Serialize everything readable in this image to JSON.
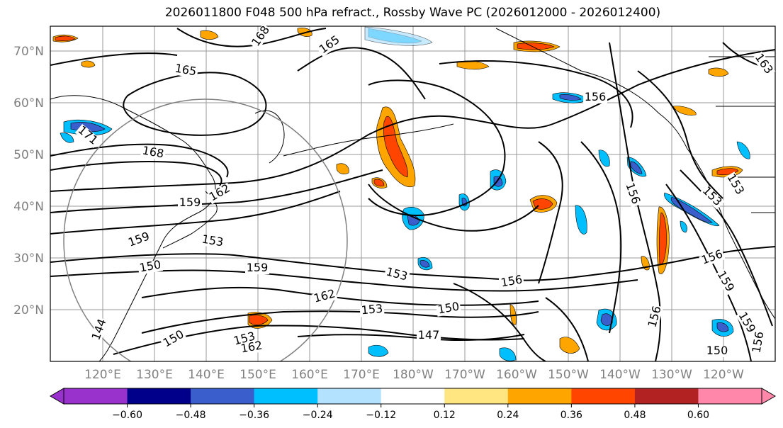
{
  "title": "2026011800 F048 500 hPa refract., Rossby Wave PC (2026012000 - 2026012400)",
  "lat_labels": [
    "70°N",
    "60°N",
    "50°N",
    "40°N",
    "30°N",
    "20°N"
  ],
  "lon_labels": [
    "120°E",
    "130°E",
    "140°E",
    "150°E",
    "160°E",
    "170°E",
    "180°W",
    "170°W",
    "160°W",
    "150°W",
    "140°W",
    "130°W",
    "120°W"
  ],
  "contour_labels": [
    "168",
    "165",
    "165",
    "163",
    "171",
    "168",
    "162",
    "159",
    "159",
    "153",
    "150",
    "159",
    "153",
    "162",
    "153",
    "156",
    "150",
    "147",
    "150",
    "153",
    "162",
    "144",
    "156",
    "156",
    "156",
    "156",
    "159",
    "159",
    "153",
    "150",
    "156",
    "153"
  ],
  "colorbar": {
    "colors": [
      "#9932cc",
      "#00008b",
      "#3a5fcd",
      "#00bfff",
      "#b2e2ff",
      "#ffffff",
      "#ffe680",
      "#ffa500",
      "#ff4500",
      "#b22222",
      "#ff88aa"
    ],
    "ticks": [
      "−0.60",
      "−0.48",
      "−0.36",
      "−0.24",
      "−0.12",
      "0.12",
      "0.24",
      "0.36",
      "0.48",
      "0.60"
    ]
  },
  "colors": {
    "coastline": "#000000",
    "gridline": "#808080",
    "axis_label": "#808080",
    "circle": "#808080"
  }
}
